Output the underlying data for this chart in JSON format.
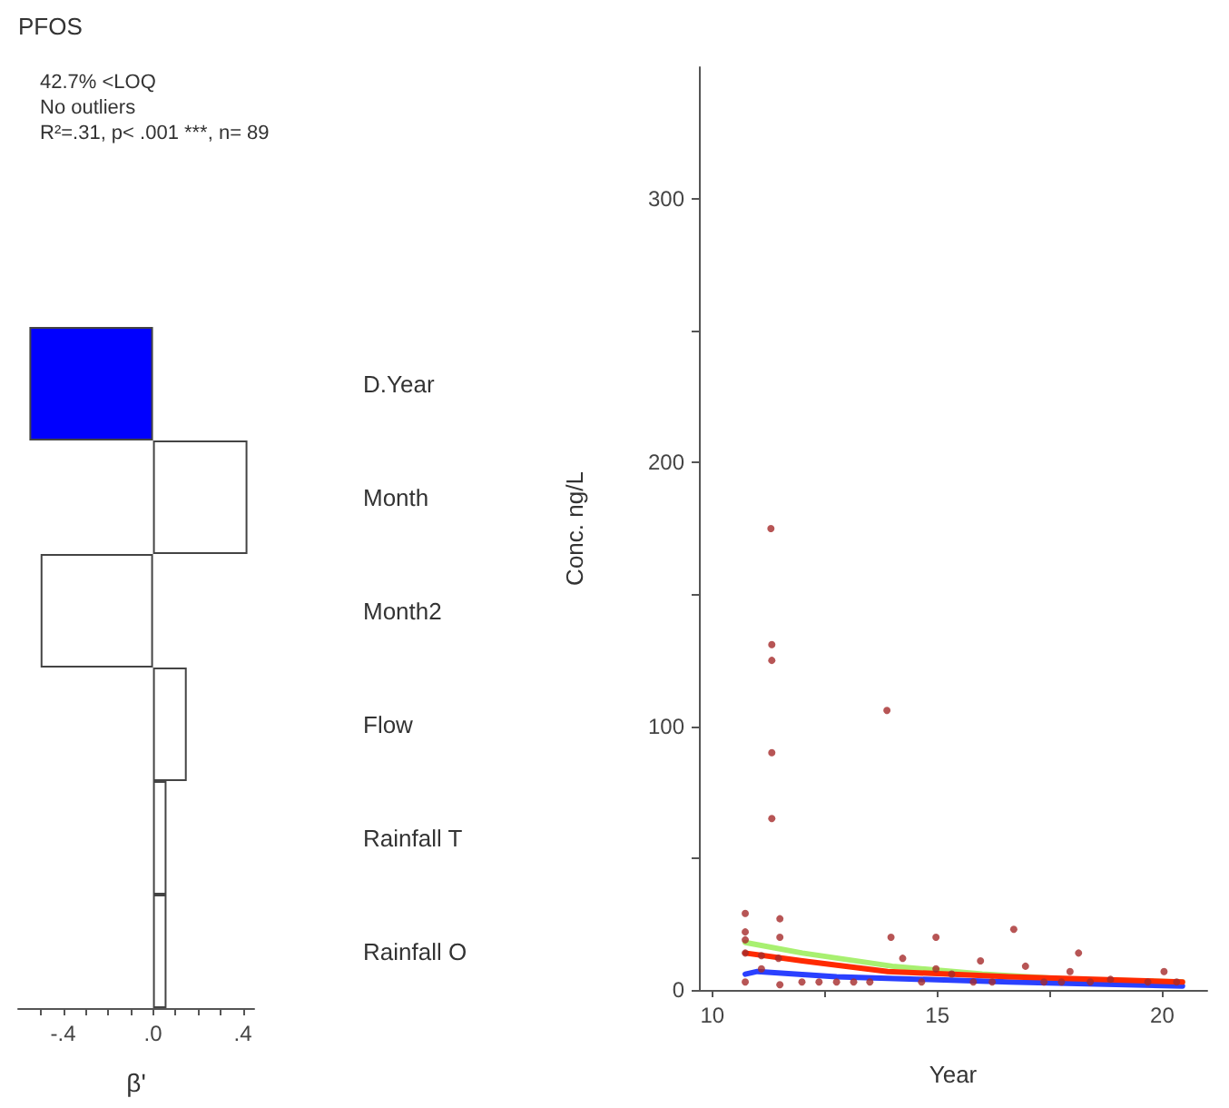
{
  "chart_data": [
    {
      "type": "bar",
      "orientation": "horizontal",
      "title": "PFOS",
      "annotations": [
        "42.7% <LOQ",
        "No outliers",
        "R²=.31, p< .001 ***, n= 89"
      ],
      "xlabel": "β'",
      "categories": [
        "D.Year",
        "Month",
        "Month2",
        "Flow",
        "Rainfall T",
        "Rainfall O"
      ],
      "values": [
        -0.55,
        0.42,
        -0.5,
        0.15,
        0.06,
        0.06
      ],
      "colors": [
        "#0000ff",
        "#ffffff",
        "#ffffff",
        "#ffffff",
        "#ffffff",
        "#ffffff"
      ],
      "xlim": [
        -0.6,
        0.45
      ],
      "xticks": [
        {
          "value": -0.5,
          "label": null
        },
        {
          "value": -0.4,
          "label": "-.4"
        },
        {
          "value": -0.3,
          "label": null
        },
        {
          "value": -0.2,
          "label": null
        },
        {
          "value": -0.1,
          "label": null
        },
        {
          "value": 0,
          "label": ".0"
        },
        {
          "value": 0.1,
          "label": null
        },
        {
          "value": 0.2,
          "label": null
        },
        {
          "value": 0.3,
          "label": null
        },
        {
          "value": 0.4,
          "label": ".4"
        }
      ],
      "grid": false
    },
    {
      "type": "scatter",
      "xlabel": "Year",
      "ylabel": "Conc. ng/L",
      "xlim": [
        9.7,
        21
      ],
      "ylim": [
        0,
        350
      ],
      "xticks": [
        10,
        {
          "value": 12.5,
          "label": null
        },
        15,
        {
          "value": 17.5,
          "label": null
        },
        20
      ],
      "yticks": [
        0,
        {
          "value": 50,
          "label": null
        },
        100,
        {
          "value": 150,
          "label": null
        },
        200,
        {
          "value": 250,
          "label": null
        },
        300
      ],
      "grid": false,
      "series": [
        {
          "type": "scatter",
          "color": "#a52a2a",
          "x": [
            11.3,
            11.32,
            11.32,
            11.32,
            11.32,
            13.88,
            10.73,
            10.73,
            10.73,
            10.73,
            11.5,
            11.5,
            13.97,
            14.97,
            16.7,
            18.14,
            14.23,
            15.96,
            16.96,
            14.97,
            17.95,
            20.04,
            10.73,
            11.09,
            11.5,
            11.99,
            12.37,
            12.76,
            13.14,
            13.5,
            14.65,
            15.32,
            16.22,
            17.37,
            17.76,
            18.85,
            19.68,
            20.32,
            18.4,
            15.8,
            11.47,
            11.09
          ],
          "values": [
            175,
            131,
            125,
            90,
            65,
            106,
            29,
            22,
            19,
            14,
            27,
            20,
            20,
            20,
            23,
            14,
            12,
            11,
            9,
            8,
            7,
            7,
            3,
            8,
            2,
            3,
            3,
            3,
            3,
            3,
            3,
            6,
            3,
            3,
            3,
            4,
            3,
            3,
            3,
            3,
            12,
            13
          ]
        },
        {
          "type": "line",
          "color": "#a8f070",
          "marker": "none",
          "x": [
            10.73,
            12,
            14,
            16,
            18,
            20.45
          ],
          "values": [
            18,
            14,
            9,
            6,
            4,
            3
          ]
        },
        {
          "type": "line",
          "color": "#2a40ff",
          "marker": "none",
          "x": [
            10.73,
            11,
            12.76,
            16.6,
            20.45
          ],
          "values": [
            6,
            7,
            5,
            3,
            1.5
          ]
        },
        {
          "type": "line",
          "color": "#ff2a00",
          "marker": "none",
          "x": [
            10.73,
            12,
            13.9,
            16.6,
            20.45
          ],
          "values": [
            14,
            11,
            7,
            5,
            3
          ]
        }
      ]
    }
  ]
}
